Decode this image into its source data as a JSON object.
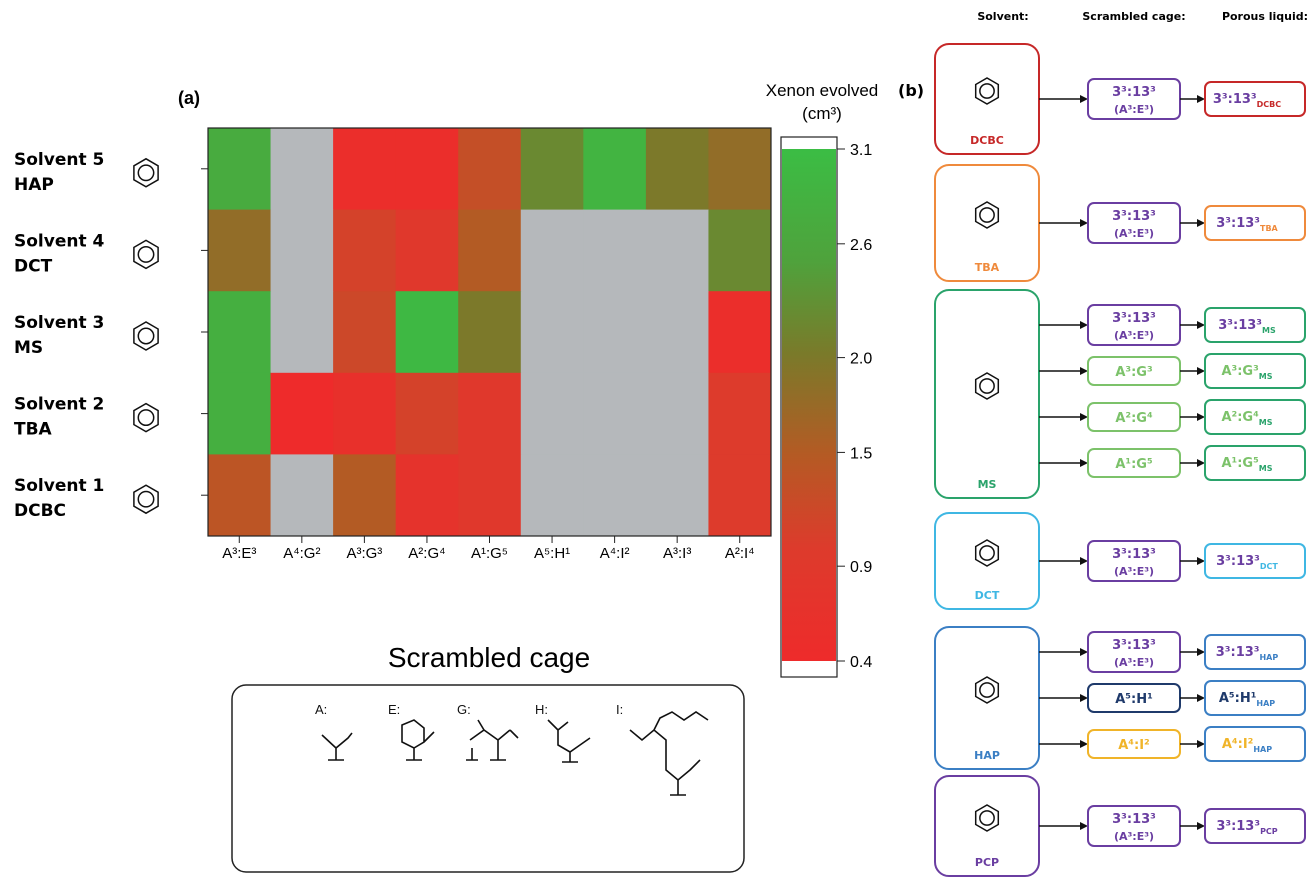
{
  "panel_a": {
    "label": "(a)"
  },
  "panel_b": {
    "label": "(b)",
    "headers": [
      "Solvent:",
      "Scrambled cage:",
      "Porous liquid:"
    ],
    "groups": [
      {
        "solvent": "DCBC",
        "color": "#c62828",
        "rows": [
          {
            "cage": "3³:13³",
            "cage_sub": "(A³:E³)",
            "cage_color": "#6a3ea1",
            "liquid": "3³:13³",
            "liquid_sub": "DCBC"
          }
        ]
      },
      {
        "solvent": "TBA",
        "color": "#ef8a3c",
        "rows": [
          {
            "cage": "3³:13³",
            "cage_sub": "(A³:E³)",
            "cage_color": "#6a3ea1",
            "liquid": "3³:13³",
            "liquid_sub": "TBA"
          }
        ]
      },
      {
        "solvent": "MS",
        "color": "#2aa36b",
        "rows": [
          {
            "cage": "3³:13³",
            "cage_sub": "(A³:E³)",
            "cage_color": "#6a3ea1",
            "liquid": "3³:13³",
            "liquid_sub": "MS"
          },
          {
            "cage": "A³:G³",
            "cage_sub": "",
            "cage_color": "#7cc26a",
            "liquid": "A³:G³",
            "liquid_sub": "MS"
          },
          {
            "cage": "A²:G⁴",
            "cage_sub": "",
            "cage_color": "#7cc26a",
            "liquid": "A²:G⁴",
            "liquid_sub": "MS"
          },
          {
            "cage": "A¹:G⁵",
            "cage_sub": "",
            "cage_color": "#7cc26a",
            "liquid": "A¹:G⁵",
            "liquid_sub": "MS"
          }
        ]
      },
      {
        "solvent": "DCT",
        "color": "#3fb7e3",
        "rows": [
          {
            "cage": "3³:13³",
            "cage_sub": "(A³:E³)",
            "cage_color": "#6a3ea1",
            "liquid": "3³:13³",
            "liquid_sub": "DCT"
          }
        ]
      },
      {
        "solvent": "HAP",
        "color": "#3b7fc4",
        "rows": [
          {
            "cage": "3³:13³",
            "cage_sub": "(A³:E³)",
            "cage_color": "#6a3ea1",
            "liquid": "3³:13³",
            "liquid_sub": "HAP"
          },
          {
            "cage": "A⁵:H¹",
            "cage_sub": "",
            "cage_color": "#1f3a6b",
            "liquid": "A⁵:H¹",
            "liquid_sub": "HAP"
          },
          {
            "cage": "A⁴:I²",
            "cage_sub": "",
            "cage_color": "#f0b429",
            "liquid": "A⁴:I²",
            "liquid_sub": "HAP"
          }
        ]
      },
      {
        "solvent": "PCP",
        "color": "#6a3ea1",
        "rows": [
          {
            "cage": "3³:13³",
            "cage_sub": "(A³:E³)",
            "cage_color": "#6a3ea1",
            "liquid": "3³:13³",
            "liquid_sub": "PCP"
          }
        ]
      }
    ]
  },
  "legend_box": {
    "labels": [
      "A:",
      "E:",
      "G:",
      "H:",
      "I:"
    ]
  },
  "chart_data": {
    "type": "heatmap",
    "xlabel": "Scrambled cage",
    "colorbar_title": "Xenon evolved",
    "colorbar_unit": "(cm³)",
    "colorbar_ticks": [
      3.1,
      2.6,
      2.0,
      1.5,
      0.9,
      0.4
    ],
    "colorbar_range": [
      0.4,
      3.1
    ],
    "x_categories": [
      "A³:E³",
      "A⁴:G²",
      "A³:G³",
      "A²:G⁴",
      "A¹:G⁵",
      "A⁵:H¹",
      "A⁴:I²",
      "A³:I³",
      "A²:I⁴"
    ],
    "rows": [
      {
        "name": "Solvent 5",
        "abbr": "HAP",
        "values": [
          2.7,
          null,
          0.5,
          0.5,
          1.3,
          2.2,
          2.9,
          2.0,
          1.8
        ]
      },
      {
        "name": "Solvent 4",
        "abbr": "DCT",
        "values": [
          1.8,
          null,
          1.1,
          0.9,
          1.5,
          null,
          null,
          null,
          2.2
        ]
      },
      {
        "name": "Solvent 3",
        "abbr": "MS",
        "values": [
          2.8,
          null,
          1.2,
          3.0,
          2.0,
          null,
          null,
          null,
          0.5
        ]
      },
      {
        "name": "Solvent 2",
        "abbr": "TBA",
        "values": [
          2.8,
          0.4,
          0.6,
          1.1,
          0.9,
          null,
          null,
          null,
          1.0
        ]
      },
      {
        "name": "Solvent 1",
        "abbr": "DCBC",
        "values": [
          1.4,
          null,
          1.5,
          0.7,
          0.9,
          null,
          null,
          null,
          1.0
        ]
      }
    ],
    "null_color": "#b5b8bb"
  }
}
